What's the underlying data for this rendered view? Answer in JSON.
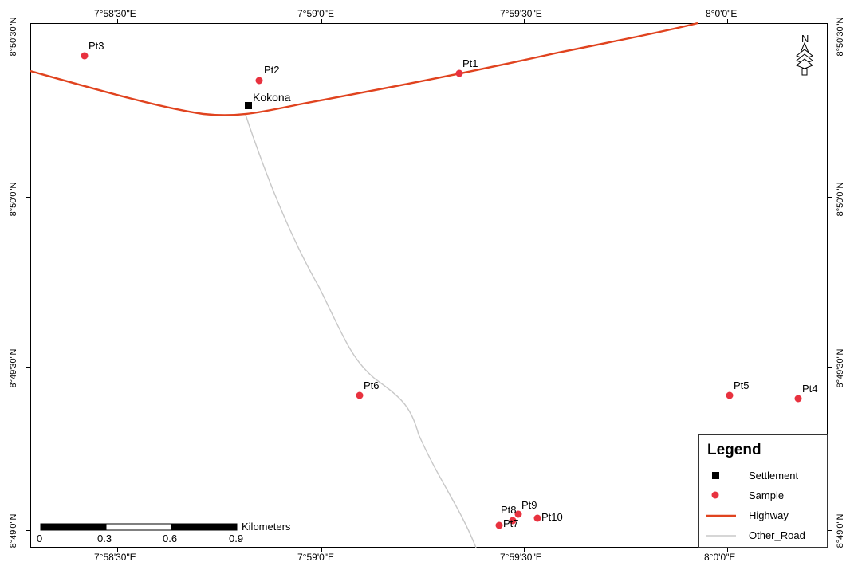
{
  "graticule": {
    "top_labels": [
      "7°58'30\"E",
      "7°59'0\"E",
      "7°59'30\"E",
      "8°0'0\"E"
    ],
    "bottom_labels": [
      "7°58'30\"E",
      "7°59'0\"E",
      "7°59'30\"E",
      "8°0'0\"E"
    ],
    "left_labels": [
      "8°50'30\"N",
      "8°50'0\"N",
      "8°49'30\"N",
      "8°49'0\"N"
    ],
    "right_labels": [
      "8°50'30\"N",
      "8°50'0\"N",
      "8°49'30\"N",
      "8°49'0\"N"
    ]
  },
  "settlement": {
    "label": "Kokona"
  },
  "samples": [
    "Pt1",
    "Pt2",
    "Pt3",
    "Pt4",
    "Pt5",
    "Pt6",
    "Pt7",
    "Pt8",
    "Pt9",
    "Pt10"
  ],
  "legend": {
    "title": "Legend",
    "items": [
      {
        "label": "Settlement",
        "symbol": "square",
        "color": "#000000"
      },
      {
        "label": "Sample",
        "symbol": "dot",
        "color": "#e8323f"
      },
      {
        "label": "Highway",
        "symbol": "line",
        "color": "#e0431f"
      },
      {
        "label": "Other_Road",
        "symbol": "line",
        "color": "#c8c8c8"
      }
    ]
  },
  "scale_bar": {
    "unit": "Kilometers",
    "ticks": [
      "0",
      "0.3",
      "0.6",
      "0.9"
    ]
  },
  "north_arrow": {
    "label": "N"
  },
  "colors": {
    "highway": "#e0431f",
    "other_road": "#c8c8c8",
    "sample": "#e8323f",
    "settlement": "#000000"
  }
}
